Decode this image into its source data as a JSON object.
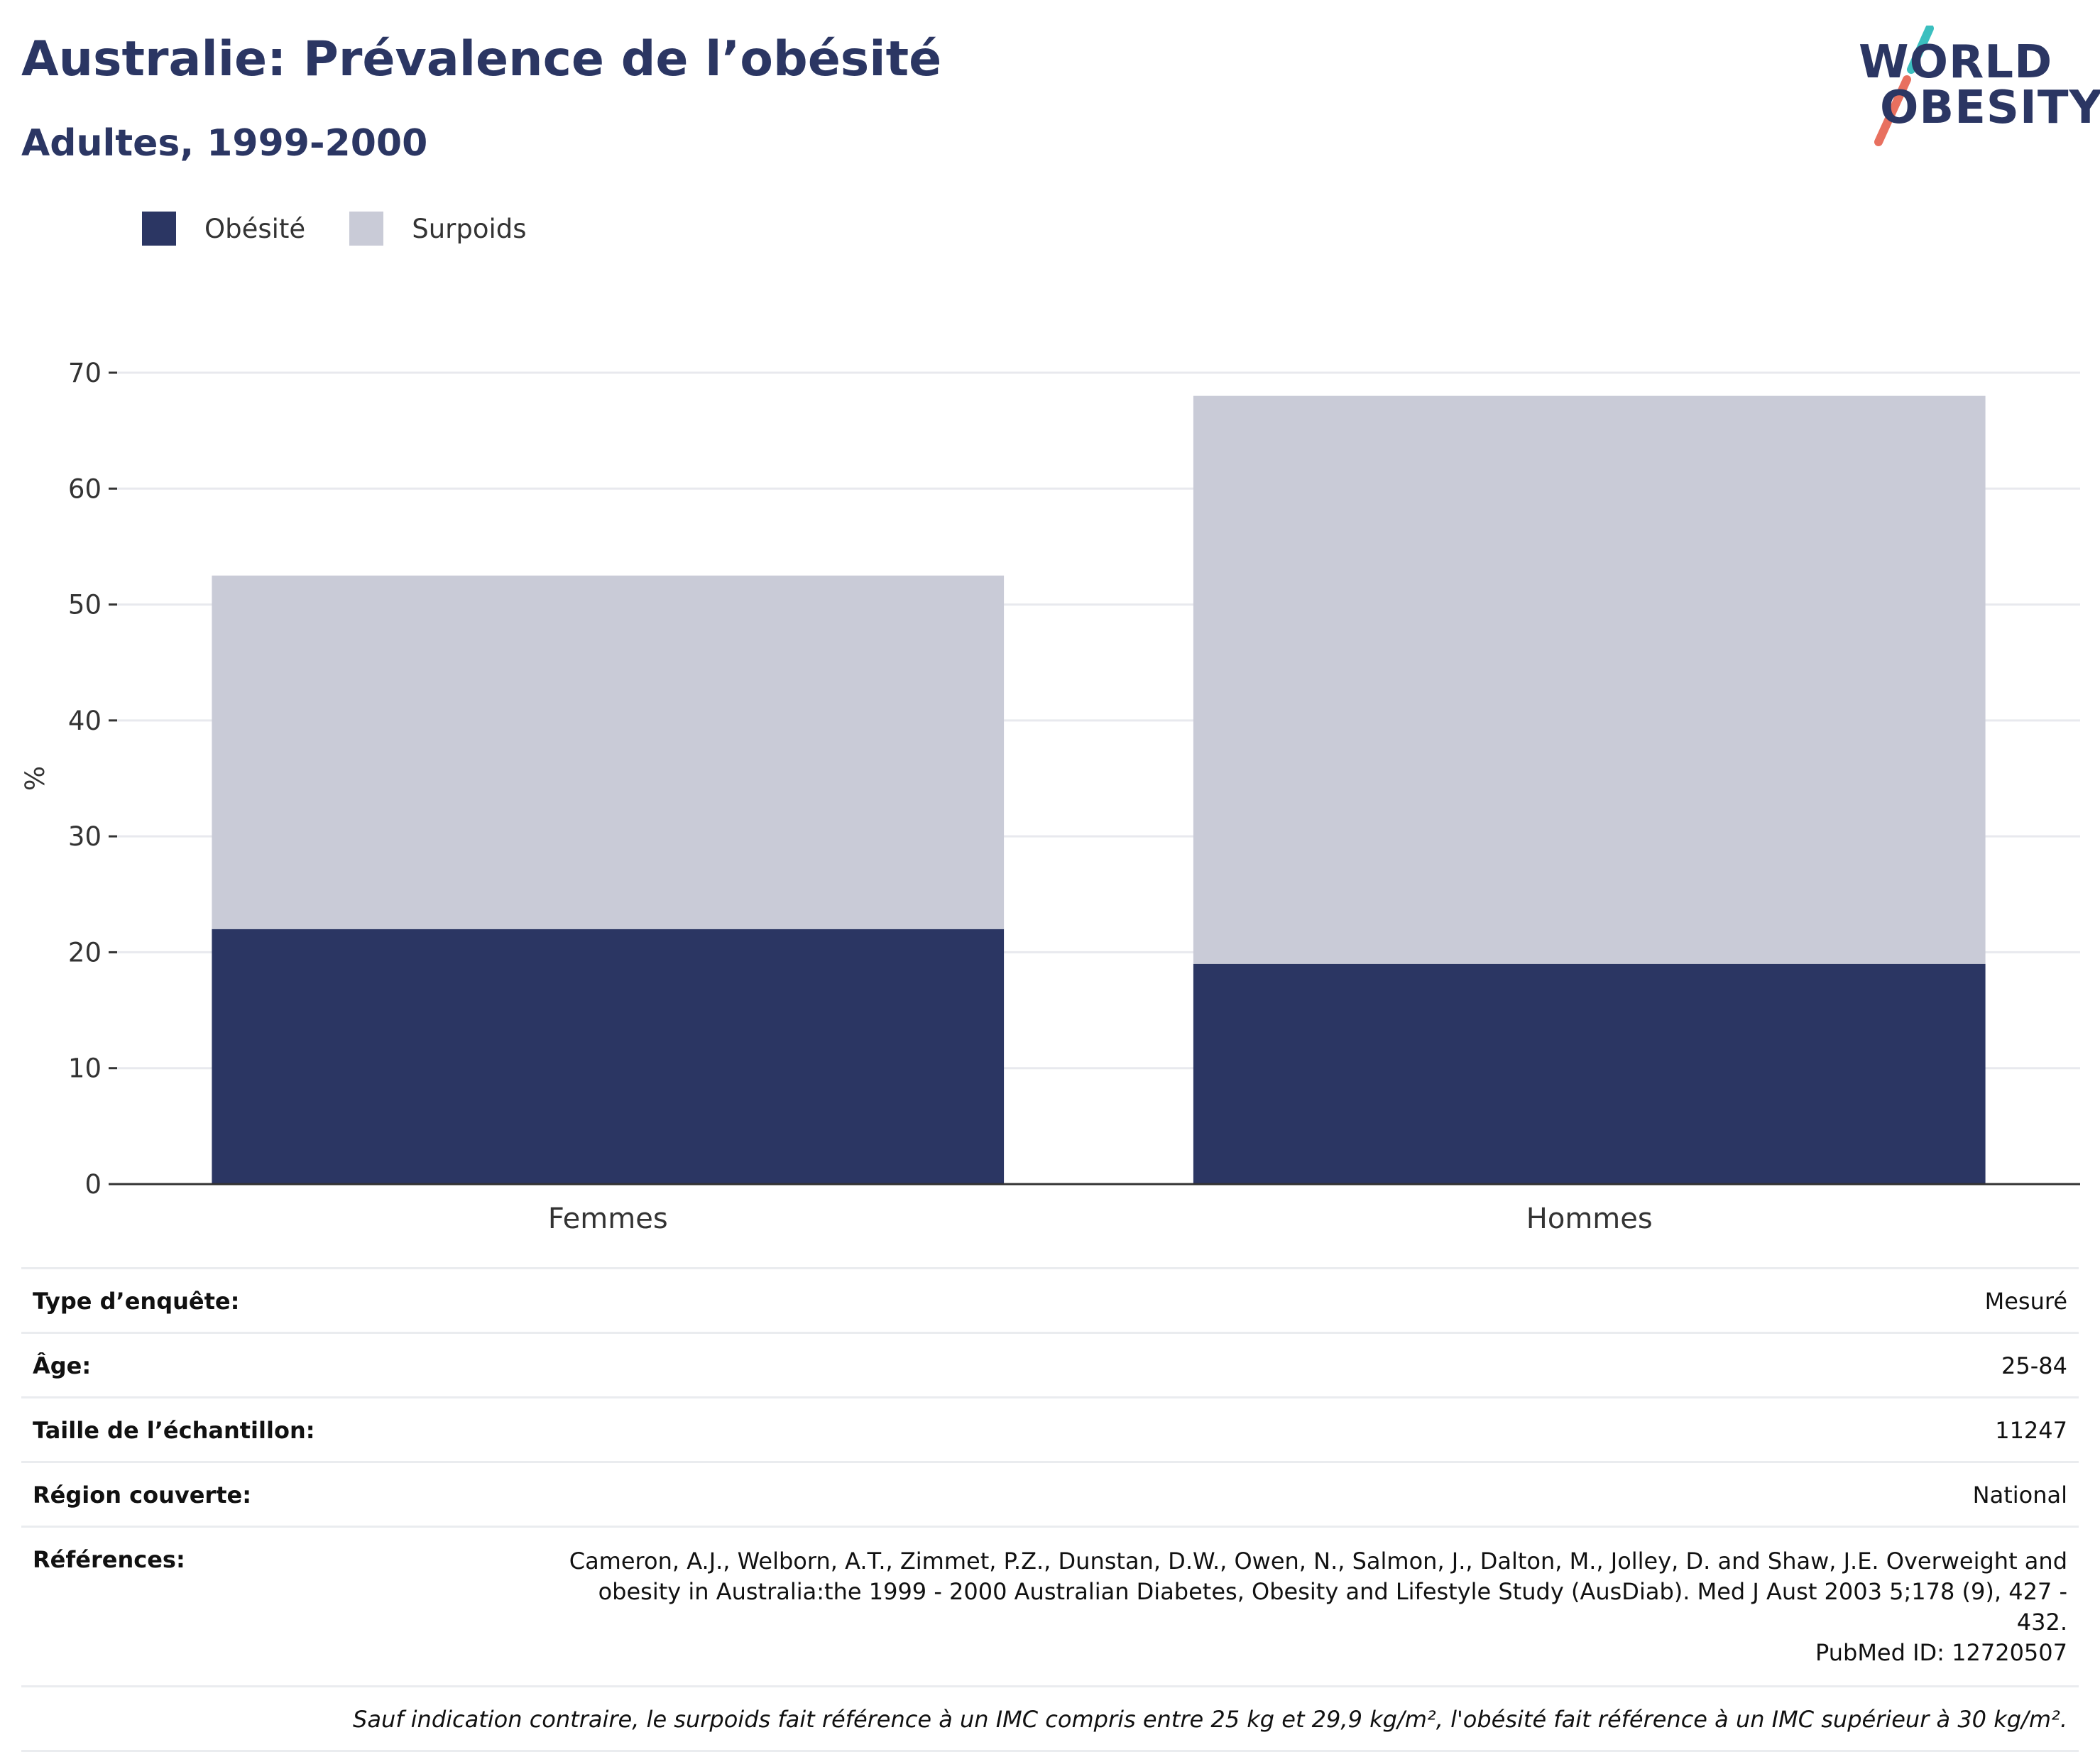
{
  "header": {
    "title": "Australie: Prévalence de l’obésité",
    "subtitle": "Adultes, 1999-2000"
  },
  "logo": {
    "line1": "WORLD",
    "line2": "OBESITY",
    "colors": {
      "text": "#2b3663",
      "slash_teal": "#3bbfbf",
      "slash_coral": "#e8705f"
    }
  },
  "legend": {
    "items": [
      {
        "label": "Obésité",
        "color": "#2b3663"
      },
      {
        "label": "Surpoids",
        "color": "#c9cbd7"
      }
    ]
  },
  "chart_data": {
    "type": "bar",
    "stacked": true,
    "categories": [
      "Femmes",
      "Hommes"
    ],
    "series": [
      {
        "name": "Obésité",
        "color": "#2b3663",
        "values": [
          22,
          19
        ]
      },
      {
        "name": "Surpoids",
        "color": "#c9cbd7",
        "values": [
          30.5,
          49
        ]
      }
    ],
    "ylabel": "%",
    "xlabel": "",
    "ylim": [
      0,
      70
    ],
    "yticks": [
      0,
      10,
      20,
      30,
      40,
      50,
      60,
      70
    ],
    "grid": true,
    "legend_position": "top-left"
  },
  "info": {
    "survey_type": {
      "label": "Type d’enquête:",
      "value": "Mesuré"
    },
    "age": {
      "label": "Âge:",
      "value": "25-84"
    },
    "sample_size": {
      "label": "Taille de l’échantillon:",
      "value": "11247"
    },
    "region": {
      "label": "Région couverte:",
      "value": "National"
    },
    "references": {
      "label": "Références:",
      "lines": [
        "Cameron, A.J., Welborn, A.T., Zimmet, P.Z., Dunstan, D.W., Owen, N., Salmon, J., Dalton, M., Jolley, D. and Shaw, J.E. Overweight and",
        "obesity in Australia:the 1999 - 2000 Australian Diabetes, Obesity and Lifestyle Study (AusDiab). Med J Aust 2003 5;178 (9), 427 - 432.",
        "PubMed ID: 12720507"
      ]
    },
    "footnote": "Sauf indication contraire, le surpoids fait référence à un IMC compris entre 25 kg et 29,9 kg/m², l'obésité fait référence à un IMC supérieur à 30 kg/m²."
  }
}
